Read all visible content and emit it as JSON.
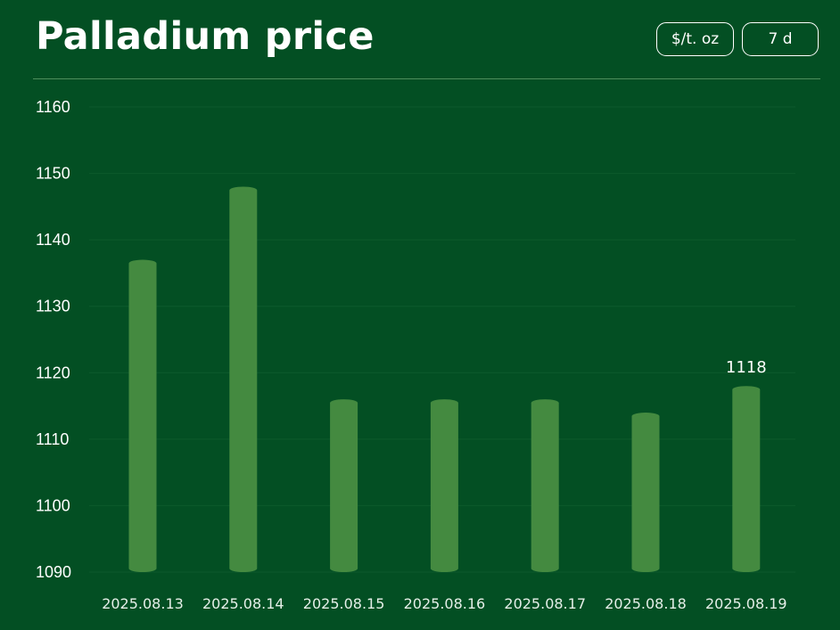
{
  "header": {
    "title": "Palladium price",
    "unit_button": "$/t. oz",
    "range_button": "7 d"
  },
  "colors": {
    "background": "#034f23",
    "bar": "#448a40",
    "grid": "#0d5a2c",
    "text": "#ffffff"
  },
  "chart_data": {
    "type": "bar",
    "title": "Palladium price",
    "xlabel": "",
    "ylabel": "",
    "categories": [
      "2025.08.13",
      "2025.08.14",
      "2025.08.15",
      "2025.08.16",
      "2025.08.17",
      "2025.08.18",
      "2025.08.19"
    ],
    "values": [
      1137,
      1148,
      1116,
      1116,
      1116,
      1114,
      1118
    ],
    "ylim": [
      1090,
      1160
    ],
    "yticks": [
      1090,
      1100,
      1110,
      1120,
      1130,
      1140,
      1150,
      1160
    ],
    "grid": true,
    "data_labels": [
      {
        "category": "2025.08.19",
        "text": "1118"
      }
    ]
  }
}
